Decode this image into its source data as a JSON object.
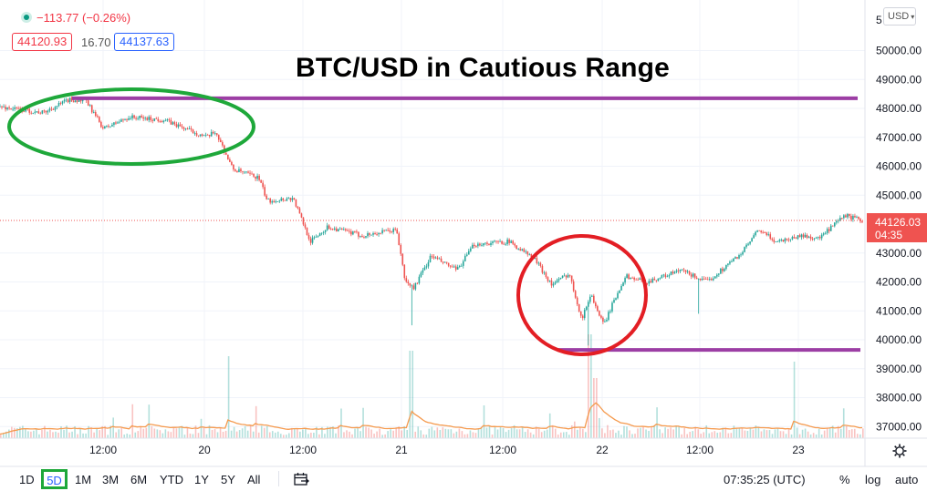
{
  "header": {
    "change": "−113.77 (−0.26%)",
    "bid": "44120.93",
    "spread": "16.70",
    "ask": "44137.63",
    "currency": "USD",
    "currency_icon": "chevron-down-icon"
  },
  "colors": {
    "up": "#26a69a",
    "down": "#ef5350",
    "annotation_line": "#9c3ea4",
    "green_circle": "#1ea83a",
    "red_circle": "#e31e24",
    "ma_line": "#f59a4e",
    "accent": "#2962ff"
  },
  "bottom_bar": {
    "ranges": [
      "1D",
      "5D",
      "1M",
      "3M",
      "6M",
      "YTD",
      "1Y",
      "5Y",
      "All"
    ],
    "selected_range": "5D",
    "time": "07:35:25 (UTC)",
    "percent": "%",
    "log": "log",
    "auto": "auto"
  },
  "chart_data": {
    "type": "candlestick",
    "title": "BTC/USD in Cautious Range",
    "x_labels": [
      "12:00",
      "20",
      "12:00",
      "21",
      "12:00",
      "22",
      "12:00",
      "23"
    ],
    "y_ticks": [
      "50000.00",
      "49000.00",
      "48000.00",
      "47000.00",
      "46000.00",
      "45000.00",
      "43000.00",
      "42000.00",
      "41000.00",
      "40000.00",
      "39000.00",
      "38000.00",
      "37000.00"
    ],
    "y_top_partial": "5",
    "ylim": [
      36700,
      51500
    ],
    "current_price": "44126.03",
    "countdown": "04:35",
    "price_path": [
      {
        "t": 0.0,
        "p": 48050
      },
      {
        "t": 0.05,
        "p": 47850
      },
      {
        "t": 0.08,
        "p": 48300
      },
      {
        "t": 0.1,
        "p": 48250
      },
      {
        "t": 0.12,
        "p": 47300
      },
      {
        "t": 0.15,
        "p": 47700
      },
      {
        "t": 0.19,
        "p": 47600
      },
      {
        "t": 0.24,
        "p": 47000
      },
      {
        "t": 0.25,
        "p": 47200
      },
      {
        "t": 0.27,
        "p": 45900
      },
      {
        "t": 0.3,
        "p": 45600
      },
      {
        "t": 0.31,
        "p": 44800
      },
      {
        "t": 0.34,
        "p": 44900
      },
      {
        "t": 0.36,
        "p": 43400
      },
      {
        "t": 0.38,
        "p": 43900
      },
      {
        "t": 0.42,
        "p": 43600
      },
      {
        "t": 0.46,
        "p": 43800
      },
      {
        "t": 0.47,
        "p": 42000
      },
      {
        "t": 0.48,
        "p": 41800
      },
      {
        "t": 0.5,
        "p": 42900
      },
      {
        "t": 0.53,
        "p": 42400
      },
      {
        "t": 0.55,
        "p": 43300
      },
      {
        "t": 0.59,
        "p": 43400
      },
      {
        "t": 0.62,
        "p": 42800
      },
      {
        "t": 0.64,
        "p": 41900
      },
      {
        "t": 0.66,
        "p": 42300
      },
      {
        "t": 0.675,
        "p": 40700
      },
      {
        "t": 0.685,
        "p": 41600
      },
      {
        "t": 0.7,
        "p": 40500
      },
      {
        "t": 0.71,
        "p": 41200
      },
      {
        "t": 0.725,
        "p": 42200
      },
      {
        "t": 0.75,
        "p": 42000
      },
      {
        "t": 0.79,
        "p": 42400
      },
      {
        "t": 0.82,
        "p": 42000
      },
      {
        "t": 0.86,
        "p": 43000
      },
      {
        "t": 0.88,
        "p": 43800
      },
      {
        "t": 0.9,
        "p": 43400
      },
      {
        "t": 0.93,
        "p": 43600
      },
      {
        "t": 0.95,
        "p": 43500
      },
      {
        "t": 0.98,
        "p": 44300
      },
      {
        "t": 1.0,
        "p": 44120
      }
    ],
    "spikes": [
      {
        "t": 0.477,
        "low": 40500
      },
      {
        "t": 0.683,
        "low": 39800
      },
      {
        "t": 0.81,
        "low": 40900
      }
    ],
    "resistance_level": 48350,
    "support_level": 39650,
    "volume_spikes": [
      {
        "t": 0.265,
        "v": 0.75
      },
      {
        "t": 0.477,
        "v": 0.8
      },
      {
        "t": 0.683,
        "v": 0.95
      },
      {
        "t": 0.69,
        "v": 0.55
      },
      {
        "t": 0.92,
        "v": 0.7
      },
      {
        "t": 0.56,
        "v": 0.3
      }
    ]
  }
}
